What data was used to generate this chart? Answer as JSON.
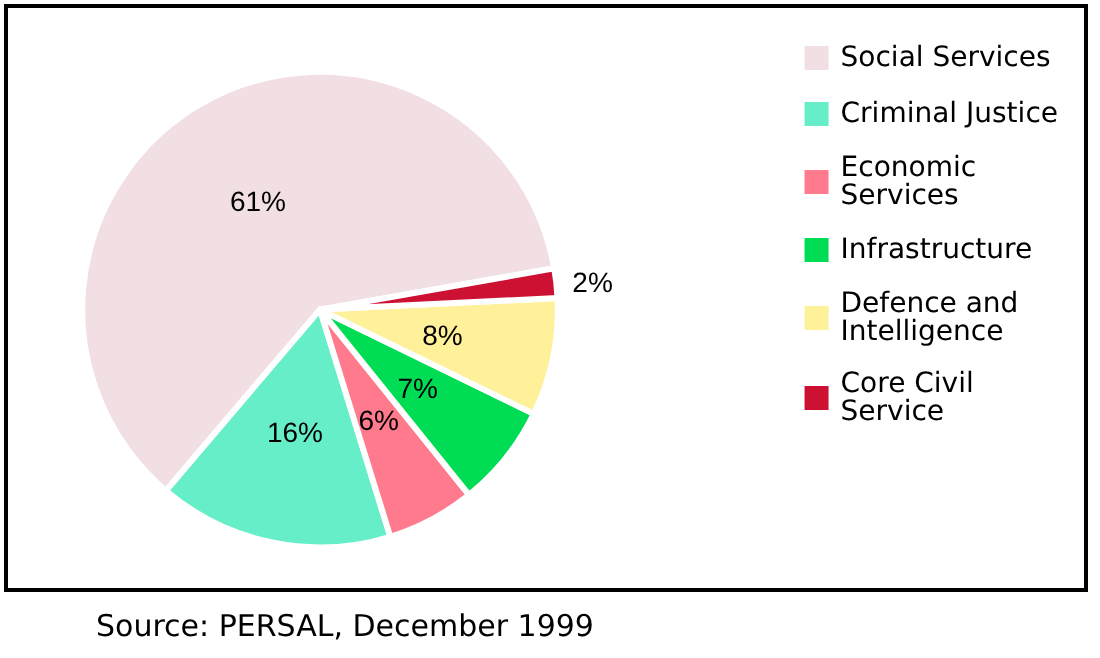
{
  "chart_data": {
    "type": "pie",
    "categories": [
      "Social Services",
      "Criminal Justice",
      "Economic Services",
      "Infrastructure",
      "Defence and Intelligence",
      "Core Civil Service"
    ],
    "values": [
      61,
      16,
      6,
      7,
      8,
      2
    ],
    "value_labels": [
      "61%",
      "16%",
      "6%",
      "7%",
      "8%",
      "2%"
    ],
    "colors": [
      "#f2dfe3",
      "#66eec8",
      "#ff7a8c",
      "#00dd55",
      "#fff09a",
      "#cc1133"
    ],
    "legend": "right",
    "annotations": [
      "Source: PERSAL, December 1999"
    ]
  }
}
